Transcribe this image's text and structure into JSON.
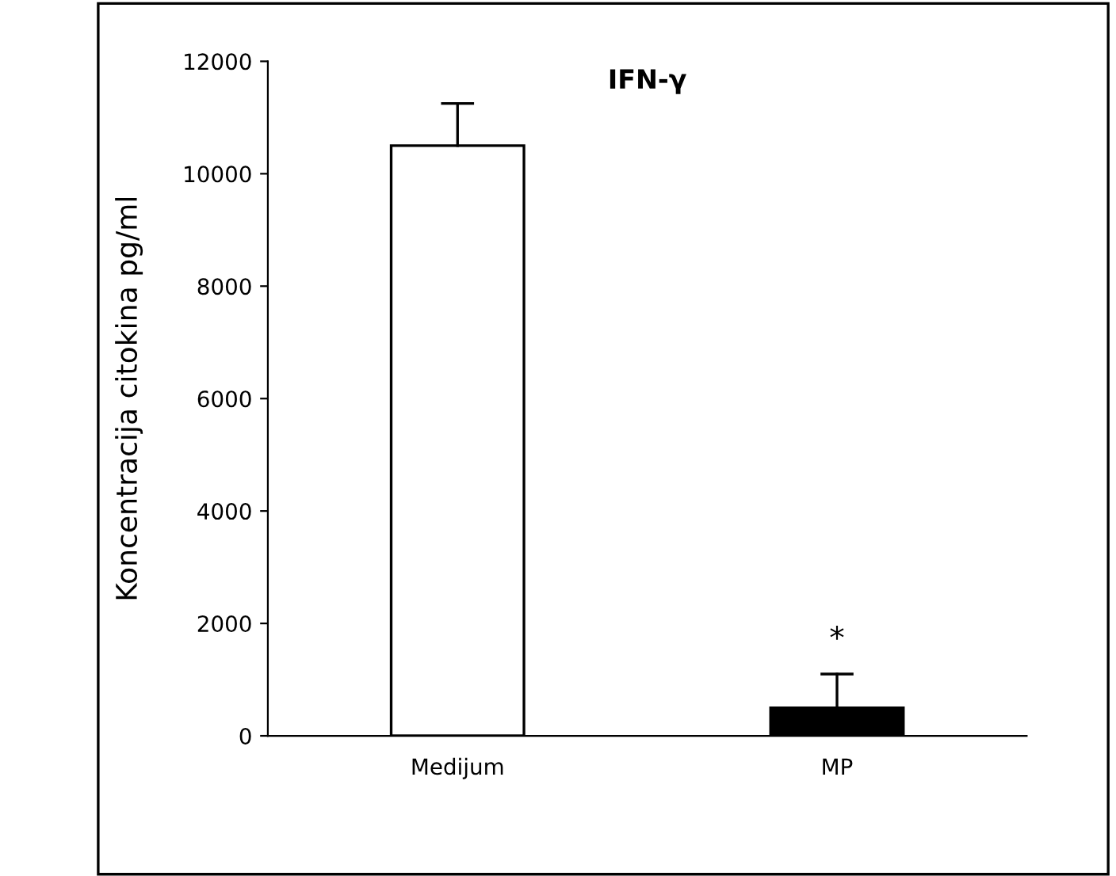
{
  "chart_data": {
    "type": "bar",
    "title": "IFN-γ",
    "ylabel": "Koncentracija citokina pg/ml",
    "categories": [
      "Medijum",
      "MP"
    ],
    "series": [
      {
        "values": [
          10500,
          500
        ],
        "errors": [
          [
            10500,
            11250
          ],
          [
            500,
            1100
          ]
        ]
      }
    ],
    "ylim": [
      0,
      12000
    ],
    "yticks": [
      0,
      2000,
      4000,
      6000,
      8000,
      10000,
      12000
    ],
    "colors": [
      "#ffffff",
      "#000000"
    ],
    "grid": false,
    "legend": false,
    "annotations": [
      "*"
    ]
  }
}
